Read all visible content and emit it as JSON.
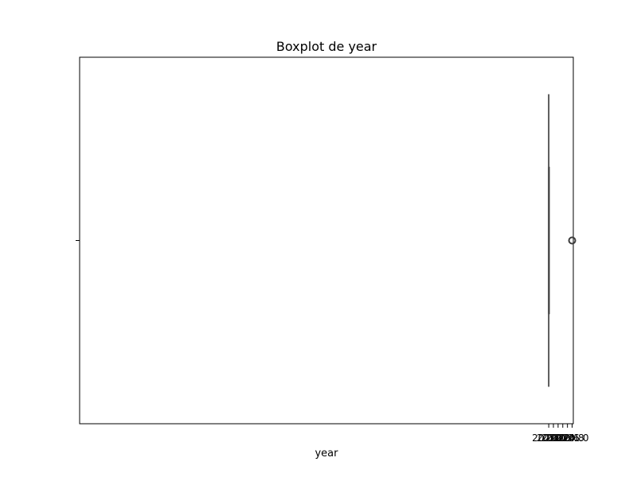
{
  "chart_data": {
    "type": "boxplot",
    "title": "Boxplot de year",
    "xlabel": "year",
    "ylabel": "",
    "orientation": "horizontal",
    "xlim": [
      1999.95,
      2021.05
    ],
    "xticks": [
      2020.0,
      2020.2,
      2020.4,
      2020.6,
      2020.8,
      2021.0
    ],
    "xtick_labels": [
      "2020.0",
      "2020.2",
      "2020.4",
      "2020.6",
      "2020.8",
      "2021.0"
    ],
    "grid": false,
    "box": {
      "min": 2020.0,
      "q1": 2020.0,
      "median": 2020.0,
      "q3": 2020.0,
      "max": 2020.0,
      "outliers": [
        2021.0
      ]
    },
    "colors": {
      "line": "#3d3d3d",
      "box_fill": "#3274a1",
      "outlier_edge": "#3d3d3d",
      "frame": "#000000"
    }
  }
}
